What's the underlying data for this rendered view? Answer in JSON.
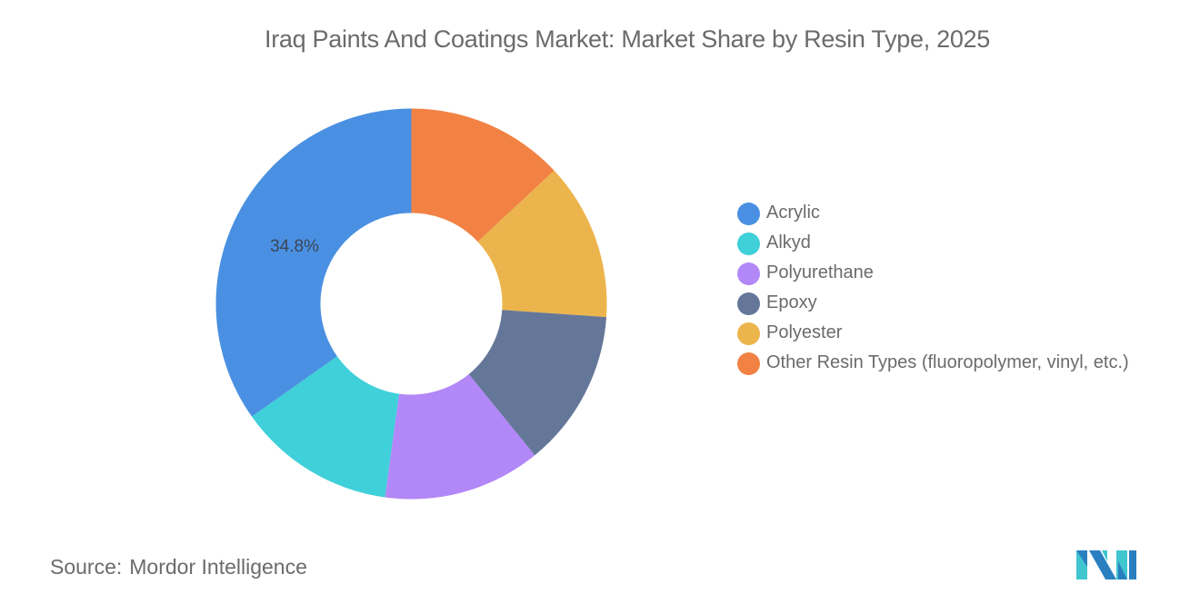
{
  "title": "Iraq Paints And Coatings Market: Market Share by Resin Type, 2025",
  "chart_data": {
    "type": "pie",
    "variant": "donut",
    "title": "Iraq Paints And Coatings Market: Market Share by Resin Type, 2025",
    "categories": [
      "Acrylic",
      "Alkyd",
      "Polyurethane",
      "Epoxy",
      "Polyester",
      "Other Resin Types (fluoropolymer, vinyl, etc.)"
    ],
    "values": [
      34.8,
      13.04,
      13.04,
      13.04,
      13.04,
      13.04
    ],
    "colors": [
      "#4a90e2",
      "#3fd0d9",
      "#b287f7",
      "#647799",
      "#ecb44c",
      "#f18244"
    ],
    "data_labels": [
      {
        "category": "Acrylic",
        "text": "34.8%"
      }
    ],
    "legend_position": "right",
    "draw_order_clockwise_from_top": [
      "Other Resin Types (fluoropolymer, vinyl, etc.)",
      "Polyester",
      "Epoxy",
      "Polyurethane",
      "Alkyd",
      "Acrylic"
    ]
  },
  "legend": {
    "items": [
      {
        "label": "Acrylic",
        "color": "#4a90e2"
      },
      {
        "label": "Alkyd",
        "color": "#3fd0d9"
      },
      {
        "label": "Polyurethane",
        "color": "#b287f7"
      },
      {
        "label": "Epoxy",
        "color": "#647799"
      },
      {
        "label": "Polyester",
        "color": "#ecb44c"
      },
      {
        "label": "Other Resin Types (fluoropolymer, vinyl, etc.)",
        "color": "#f18244"
      }
    ]
  },
  "source": {
    "label": "Source:",
    "value": "Mordor Intelligence"
  },
  "logo": {
    "icon": "mordor-intelligence-logo-icon",
    "colors": [
      "#2a7fc1",
      "#3fc6cf"
    ]
  }
}
